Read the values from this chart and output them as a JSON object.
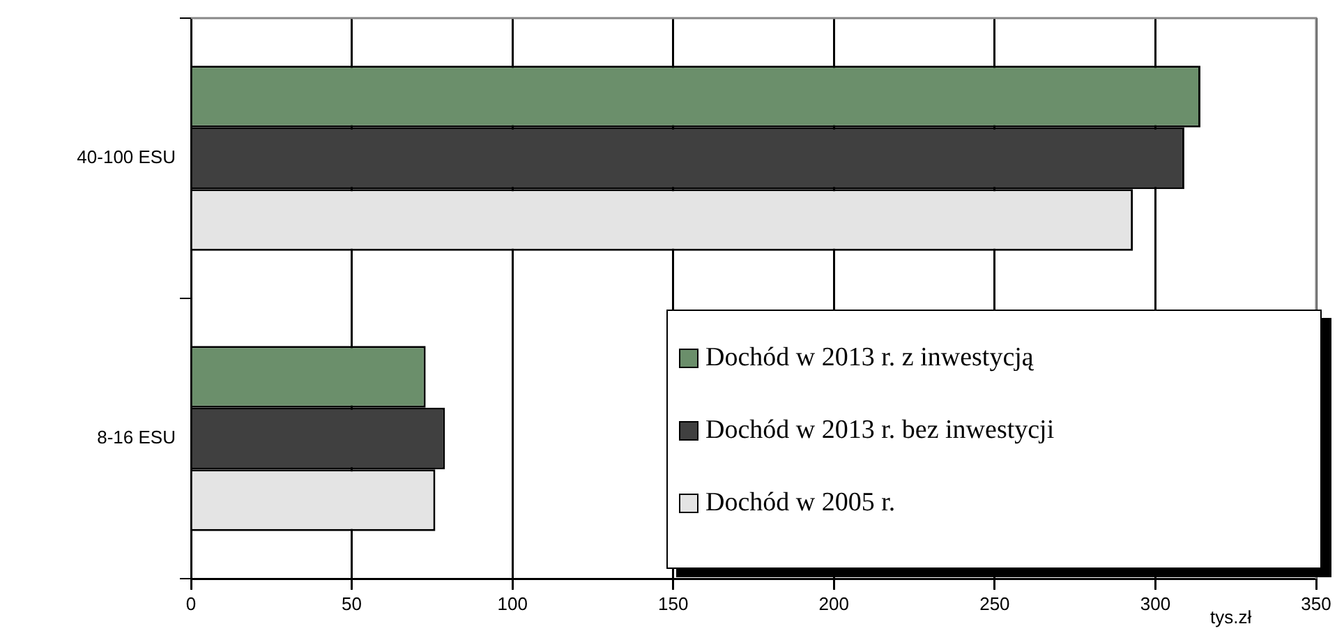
{
  "chart_data": {
    "type": "bar",
    "orientation": "horizontal",
    "categories": [
      "40-100 ESU",
      "8-16 ESU"
    ],
    "series": [
      {
        "name": "Dochód w 2013 r. z inwestycją",
        "color": "#6b8f6b",
        "values": [
          314,
          73
        ]
      },
      {
        "name": "Dochód w 2013 r. bez inwestycji",
        "color": "#404040",
        "values": [
          309,
          79
        ]
      },
      {
        "name": "Dochód w 2005 r.",
        "color": "#e4e4e4",
        "values": [
          293,
          76
        ]
      }
    ],
    "xlabel": "tys.zł",
    "xlim": [
      0,
      350
    ],
    "xticks": [
      0,
      50,
      100,
      150,
      200,
      250,
      300,
      350
    ],
    "grid": "x",
    "legend": "bottom right"
  }
}
